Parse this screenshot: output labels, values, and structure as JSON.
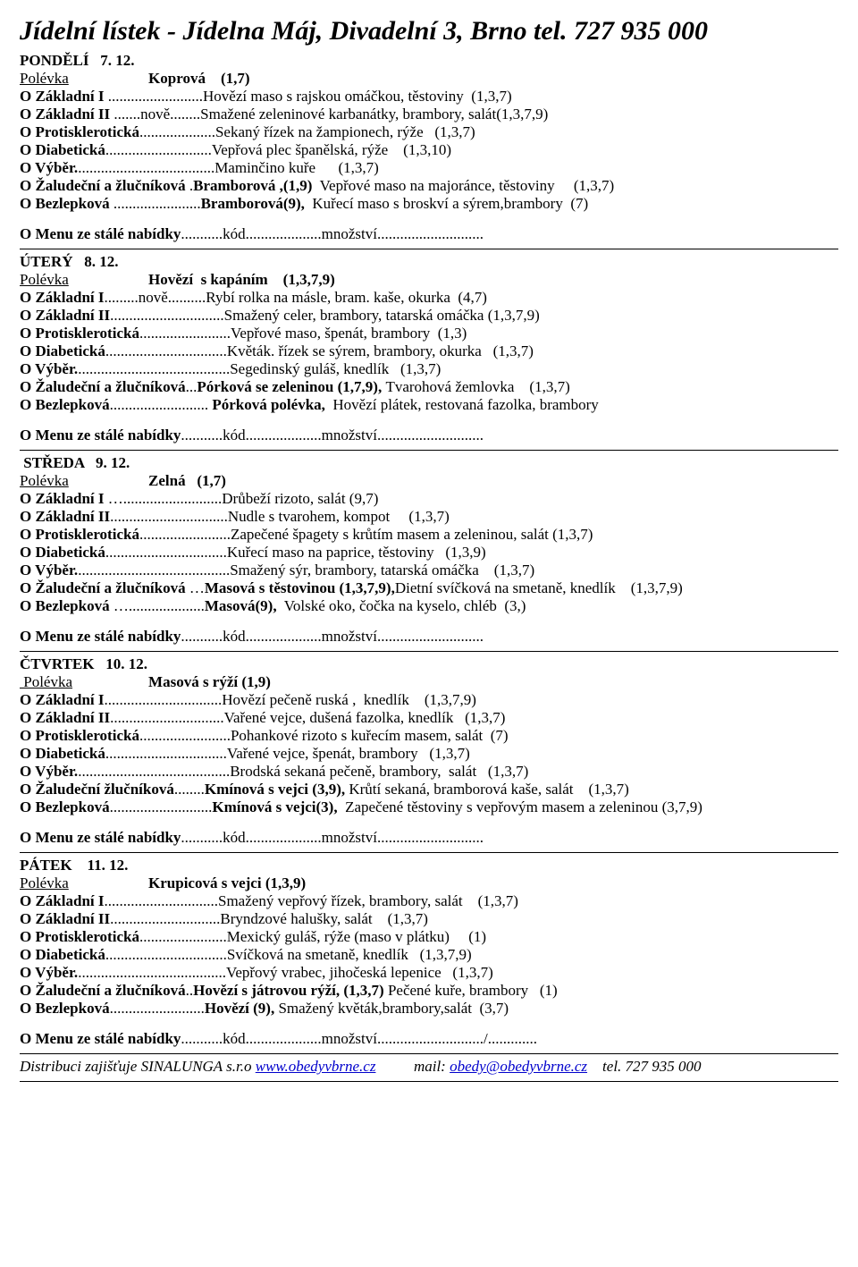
{
  "title": "Jídelní lístek - Jídelna Máj, Divadelní 3, Brno  tel. 727 935 000",
  "menu_line": {
    "prefix": "O Menu ze stálé nabídky",
    "mid1": "...........kód",
    "mid2": "....................",
    "label_mnoz": "množství",
    "tail": "............................"
  },
  "menu_line_friday": {
    "tail2": "/............."
  },
  "footer": {
    "text1": "Distribuci zajišťuje SINALUNGA s.r.o ",
    "link1": "www.obedyvbrne.cz",
    "gap": "          mail: ",
    "link2": "obedy@obedyvbrne.cz",
    "tel": "    tel. 727 935 000"
  },
  "days": [
    {
      "header": "PONDĚLÍ   7. 12.",
      "soup_label": "Polévka",
      "soup_gap": "                     ",
      "soup_name": "Koprová    (1,7)",
      "items": [
        {
          "prefix": "O Základní I",
          "dots": " .........................",
          "text": "Hovězí maso s rajskou omáčkou, těstoviny  (1,3,7)"
        },
        {
          "prefix": "O Základní II",
          "dots": " .......nově........",
          "text": "Smažené zeleninové karbanátky, brambory, salát(1,3,7,9)"
        },
        {
          "prefix": "O Protisklerotická",
          "dots": "....................",
          "text": "Sekaný řízek na žampionech, rýže   (1,3,7)"
        },
        {
          "prefix": "O Diabetická",
          "dots": "............................",
          "text": "Vepřová plec španělská, rýže    (1,3,10)"
        },
        {
          "prefix": "O Výběr.",
          "dots": "....................................",
          "text": "Maminčino kuře      (1,3,7)"
        },
        {
          "prefix": "O Žaludeční a žlučníková",
          "dots": " .",
          "highlight": "Bramborová ,(1,9)",
          "text": "  Vepřové maso na majoránce, těstoviny     (1,3,7)"
        },
        {
          "prefix": "O Bezlepková",
          "dots": " .......................",
          "highlight": "Bramborová(9),",
          "text": "  Kuřecí maso s broskví a sýrem,brambory  (7)"
        }
      ]
    },
    {
      "header": "ÚTERÝ   8. 12.",
      "soup_label": "Polévka",
      "soup_gap": "                     ",
      "soup_name": "Hovězí  s kapáním    (1,3,7,9)",
      "items": [
        {
          "prefix": "O Základní I",
          "dots": ".........nově..........",
          "text": "Rybí rolka na másle, bram. kaše, okurka  (4,7)"
        },
        {
          "prefix": "O Základní II",
          "dots": "..............................",
          "text": "Smažený celer, brambory, tatarská omáčka (1,3,7,9)"
        },
        {
          "prefix": "O Protisklerotická",
          "dots": "........................",
          "text": "Vepřové maso, špenát, brambory  (1,3)"
        },
        {
          "prefix": "O Diabetická",
          "dots": "................................",
          "text": "Květák. řízek se sýrem, brambory, okurka   (1,3,7)"
        },
        {
          "prefix": "O Výběr.",
          "dots": "........................................",
          "text": "Segedinský guláš, knedlík   (1,3,7)"
        },
        {
          "prefix": "O Žaludeční a žlučníková",
          "dots": "...",
          "highlight": "Pórková se zeleninou (1,7,9), ",
          "text": "Tvarohová žemlovka    (1,3,7)"
        },
        {
          "prefix": "O Bezlepková",
          "dots": ".......................... ",
          "highlight": "Pórková polévka, ",
          "text": " Hovězí plátek, restovaná fazolka, brambory"
        }
      ]
    },
    {
      "header": " STŘEDA   9. 12.",
      "soup_label": "Polévka",
      "soup_gap": "                     ",
      "soup_name": "Zelná   (1,7)",
      "items": [
        {
          "prefix": "O Základní I",
          "dots": " …..........................",
          "text": "Drůbeží rizoto, salát (9,7)"
        },
        {
          "prefix": "O Základní II",
          "dots": "...............................",
          "text": "Nudle s tvarohem, kompot     (1,3,7)"
        },
        {
          "prefix": "O Protisklerotická",
          "dots": "........................",
          "text": "Zapečené špagety s krůtím masem a zeleninou, salát (1,3,7)"
        },
        {
          "prefix": "O Diabetická",
          "dots": "................................",
          "text": "Kuřecí maso na paprice, těstoviny   (1,3,9)"
        },
        {
          "prefix": "O Výběr.",
          "dots": "........................................",
          "text": "Smažený sýr, brambory, tatarská omáčka    (1,3,7)"
        },
        {
          "prefix": "O Žaludeční a žlučníková",
          "dots": " …",
          "highlight": "Masová s těstovinou (1,3,7,9),",
          "text": "Dietní svíčková na smetaně, knedlík    (1,3,7,9)"
        },
        {
          "prefix": "O Bezlepková",
          "dots": " …....................",
          "highlight": "Masová(9),",
          "text": "  Volské oko, čočka na kyselo, chléb  (3,)"
        }
      ]
    },
    {
      "header": "ČTVRTEK   10. 12.",
      "soup_label": " Polévka",
      "soup_gap": "                    ",
      "soup_name": "Masová s rýží (1,9)",
      "items": [
        {
          "prefix": "O Základní I",
          "dots": "...............................",
          "text": "Hovězí pečeně ruská ,  knedlík    (1,3,7,9)"
        },
        {
          "prefix": "O Základní II",
          "dots": "..............................",
          "text": "Vařené vejce, dušená fazolka, knedlík   (1,3,7)"
        },
        {
          "prefix": "O Protisklerotická",
          "dots": "........................",
          "text": "Pohankové rizoto s kuřecím masem, salát  (7)"
        },
        {
          "prefix": "O Diabetická",
          "dots": "................................",
          "text": "Vařené vejce, špenát, brambory   (1,3,7)"
        },
        {
          "prefix": "O Výběr.",
          "dots": "........................................",
          "text": "Brodská sekaná pečeně, brambory,  salát   (1,3,7)"
        },
        {
          "prefix": "O Žaludeční žlučníková",
          "dots": "........",
          "highlight": "Kmínová s vejci (3,9), ",
          "text": "Krůtí sekaná, bramborová kaše, salát    (1,3,7)"
        },
        {
          "prefix": "O Bezlepková",
          "dots": "...........................",
          "highlight": "Kmínová s vejci(3),",
          "text": "  Zapečené těstoviny s vepřovým masem a zeleninou (3,7,9)"
        }
      ]
    },
    {
      "header": "PÁTEK    11. 12.",
      "soup_label": "Polévka",
      "soup_gap": "                     ",
      "soup_name": "Krupicová s vejci (1,3,9)",
      "items": [
        {
          "prefix": "O Základní I",
          "dots": "..............................",
          "text": "Smažený vepřový řízek, brambory, salát    (1,3,7)"
        },
        {
          "prefix": "O Základní II",
          "dots": ".............................",
          "text": "Bryndzové halušky, salát    (1,3,7)"
        },
        {
          "prefix": "O Protisklerotická",
          "dots": ".......................",
          "text": "Mexický guláš, rýže (maso v plátku)     (1)"
        },
        {
          "prefix": "O Diabetická",
          "dots": "................................",
          "text": "Svíčková na smetaně, knedlík   (1,3,7,9)"
        },
        {
          "prefix": "O Výběr.",
          "dots": ".......................................",
          "text": "Vepřový vrabec, jihočeská lepenice   (1,3,7)"
        },
        {
          "prefix": "O Žaludeční a žlučníková",
          "dots": "..",
          "highlight": "Hovězí s játrovou rýží, (1,3,7)",
          "text": " Pečené kuře, brambory   (1)"
        },
        {
          "prefix": "O Bezlepková",
          "dots": ".........................",
          "highlight": "Hovězí (9), ",
          "text": "Smažený květák,brambory,salát  (3,7)"
        }
      ],
      "footer": true
    }
  ]
}
